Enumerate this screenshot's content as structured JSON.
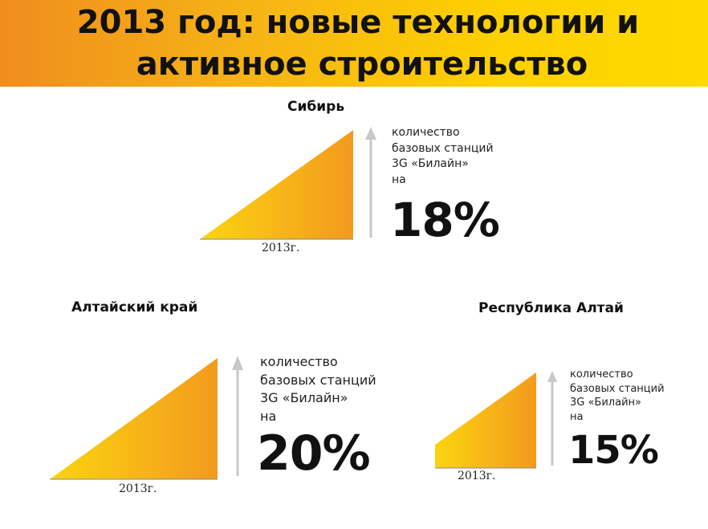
{
  "title": {
    "line1": "2013 год: новые технологии  и",
    "line2": "активное строительство"
  },
  "colors": {
    "banner_start": "#f08c1e",
    "banner_end": "#ffd900",
    "wedge_light": "#fbd410",
    "wedge_dark": "#f39a1e",
    "arrow": "#c8c8c8"
  },
  "description": [
    "количество",
    "базовых станций",
    "3G «Билайн»",
    "на"
  ],
  "chart_data": [
    {
      "type": "area",
      "region": "Сибирь",
      "x": [
        "2013г."
      ],
      "values": [
        18
      ],
      "value_label": "18%"
    },
    {
      "type": "area",
      "region": "Алтайский край",
      "x": [
        "2013г."
      ],
      "values": [
        20
      ],
      "value_label": "20%"
    },
    {
      "type": "area",
      "region": "Республика Алтай",
      "x": [
        "2013г."
      ],
      "values": [
        15
      ],
      "value_label": "15%"
    }
  ]
}
